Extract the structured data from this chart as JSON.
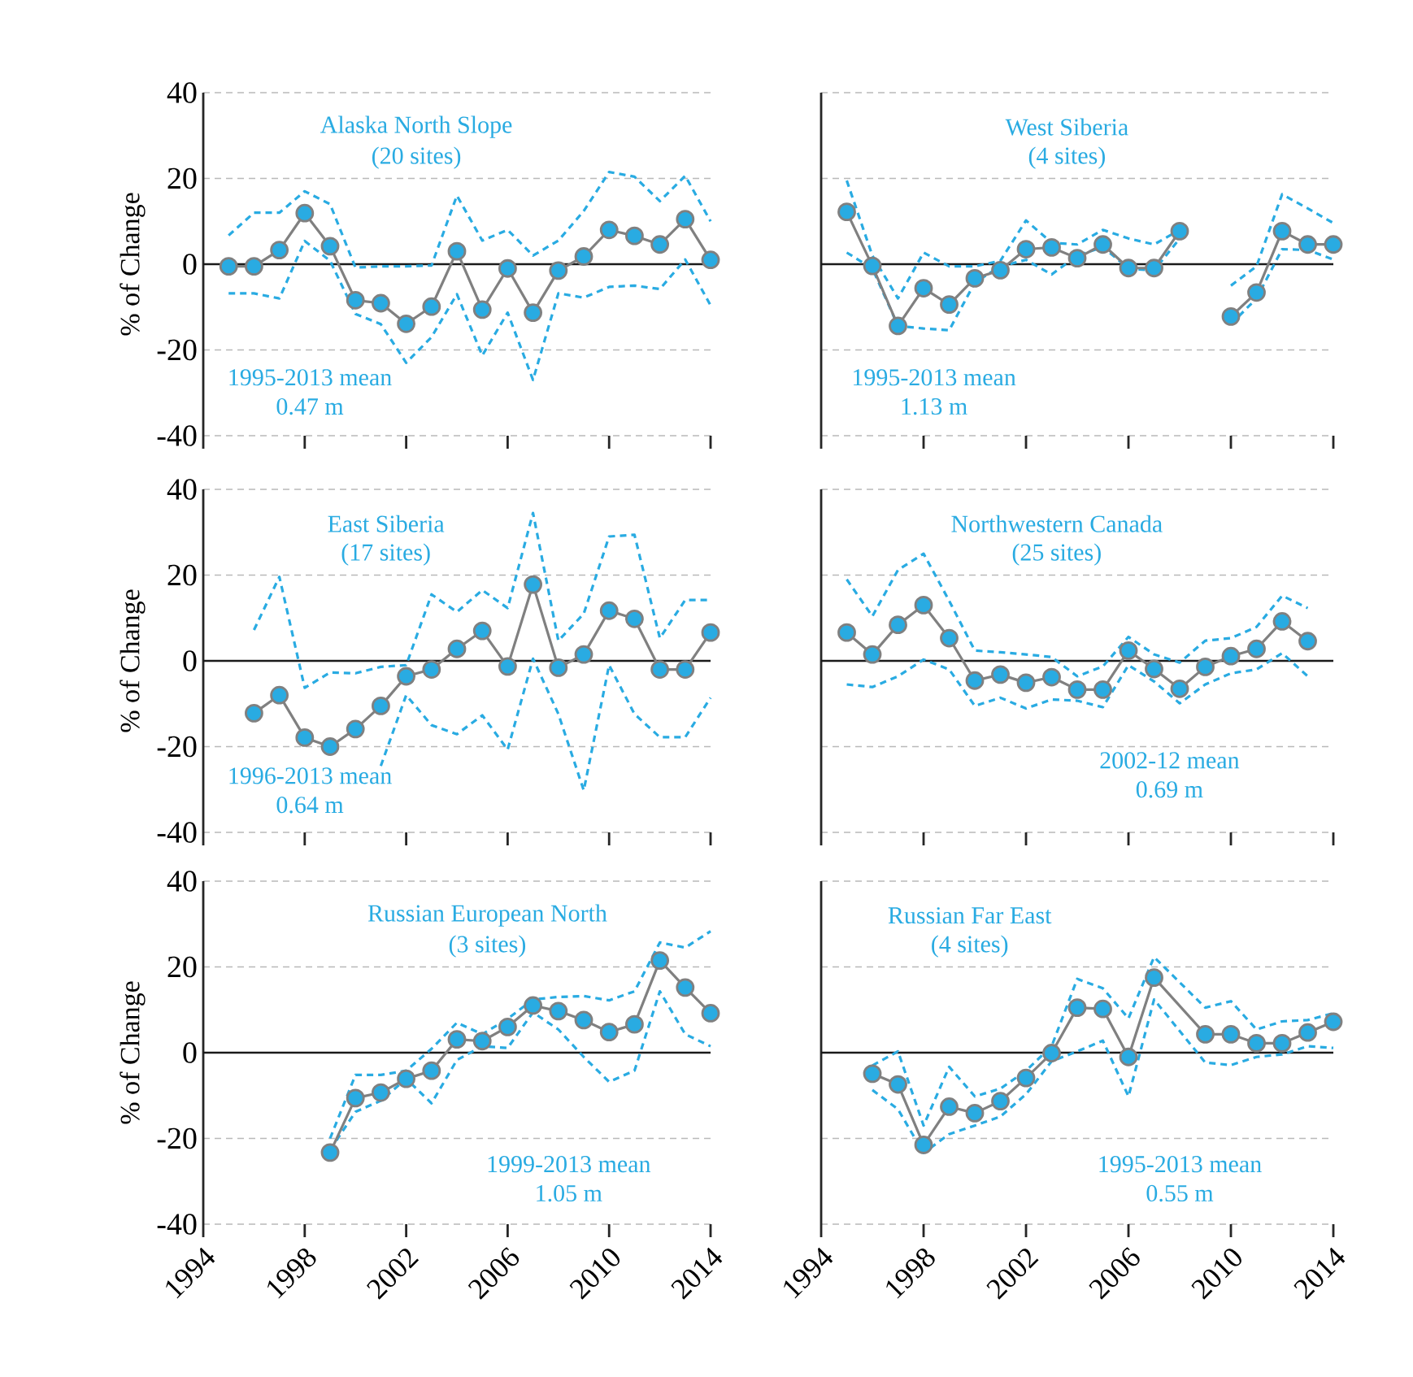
{
  "chart_data": [
    {
      "type": "line",
      "title": "Alaska North Slope",
      "subtitle": "(20 sites)",
      "ylabel": "% of Change",
      "annotations": [
        "1995-2013 mean",
        "0.47 m"
      ],
      "x": [
        1995,
        1996,
        1997,
        1998,
        1999,
        2000,
        2001,
        2002,
        2003,
        2004,
        2005,
        2006,
        2007,
        2008,
        2009,
        2010,
        2011,
        2012,
        2013,
        2014
      ],
      "xlim": [
        1994,
        2014
      ],
      "xticks": [
        1994,
        1998,
        2002,
        2006,
        2010,
        2014
      ],
      "ylim": [
        -40,
        40
      ],
      "yticks": [
        -40,
        -20,
        0,
        20,
        40
      ],
      "grid": "y",
      "marker": "circle",
      "tick_labels": "y",
      "ref_lines": [
        {
          "axis": "y",
          "value": 0,
          "color": "#1a1a1a"
        }
      ],
      "series": [
        {
          "color": "#808080",
          "values": [
            -0.5,
            -0.5,
            3.3,
            11.9,
            4.2,
            -8.4,
            -9.1,
            -13.9,
            -9.9,
            3,
            -10.6,
            -1,
            -11.3,
            -1.5,
            1.8,
            8,
            6.6,
            4.6,
            10.5,
            1
          ]
        },
        {
          "color": "#29abe2",
          "line_style": "dashed",
          "marker": "none",
          "values": [
            6.7,
            12,
            12,
            17,
            14,
            -0.8,
            -0.5,
            -0.5,
            -0.3,
            16,
            5.5,
            8,
            2,
            5.5,
            12.4,
            21.5,
            20.4,
            14.7,
            20.6,
            10
          ]
        },
        {
          "color": "#29abe2",
          "line_style": "dashed",
          "marker": "none",
          "values": [
            -6.8,
            -6.8,
            -8,
            5.4,
            0.8,
            -11.6,
            -14,
            -23,
            -17,
            -7,
            -21.3,
            -11.3,
            -27,
            -6.8,
            -7.8,
            -5.3,
            -5,
            -5.8,
            1.1,
            -9.6
          ]
        }
      ]
    },
    {
      "type": "line",
      "title": "West Siberia",
      "subtitle": "(4 sites)",
      "annotations": [
        "1995-2013 mean",
        "1.13 m"
      ],
      "x": [
        1995,
        1996,
        1997,
        1998,
        1999,
        2000,
        2001,
        2002,
        2003,
        2004,
        2005,
        2006,
        2007,
        2008,
        2009,
        2010,
        2011,
        2012,
        2013,
        2014
      ],
      "xlim": [
        1994,
        2014
      ],
      "xticks": [
        1994,
        1998,
        2002,
        2006,
        2010,
        2014
      ],
      "ylim": [
        -40,
        40
      ],
      "yticks": [
        -40,
        -20,
        0,
        20,
        40
      ],
      "grid": "y",
      "marker": "circle",
      "tick_labels": false,
      "ref_lines": [
        {
          "axis": "y",
          "value": 0,
          "color": "#1a1a1a"
        }
      ],
      "series": [
        {
          "color": "#808080",
          "values": [
            12.2,
            -0.4,
            -14.4,
            -5.6,
            -9.4,
            -3.3,
            -1.4,
            3.5,
            3.9,
            1.4,
            4.6,
            -0.9,
            -0.9,
            7.7,
            null,
            -12.2,
            -6.6,
            7.7,
            4.6,
            4.6
          ]
        },
        {
          "color": "#29abe2",
          "line_style": "dashed",
          "marker": "none",
          "values": [
            19.5,
            2,
            -8,
            2.7,
            -0.5,
            -0.5,
            0.8,
            10.2,
            5,
            4.6,
            8,
            6,
            4.6,
            8,
            null,
            -5,
            -0.5,
            16.3,
            13,
            9.6
          ]
        },
        {
          "color": "#29abe2",
          "line_style": "dashed",
          "marker": "none",
          "values": [
            2.7,
            -1,
            -14.4,
            -15,
            -15.4,
            -4.3,
            -0.5,
            1,
            -2.4,
            2,
            4,
            -1,
            -1.5,
            6,
            null,
            -14,
            -8,
            3.5,
            3.3,
            1.1
          ]
        }
      ]
    },
    {
      "type": "line",
      "title": "East Siberia",
      "subtitle": "(17 sites)",
      "ylabel": "% of Change",
      "annotations": [
        "1996-2013 mean",
        "0.64 m"
      ],
      "x": [
        1996,
        1997,
        1998,
        1999,
        2000,
        2001,
        2002,
        2003,
        2004,
        2005,
        2006,
        2007,
        2008,
        2009,
        2010,
        2011,
        2012,
        2013,
        2014
      ],
      "xlim": [
        1994,
        2014
      ],
      "xticks": [
        1994,
        1998,
        2002,
        2006,
        2010,
        2014
      ],
      "ylim": [
        -40,
        40
      ],
      "yticks": [
        -40,
        -20,
        0,
        20,
        40
      ],
      "grid": "y",
      "marker": "circle",
      "tick_labels": "y",
      "ref_lines": [
        {
          "axis": "y",
          "value": 0,
          "color": "#1a1a1a"
        }
      ],
      "series": [
        {
          "color": "#808080",
          "values": [
            -12.2,
            -8,
            -17.9,
            -20,
            -15.9,
            -10.5,
            -3.6,
            -2,
            2.8,
            7,
            -1.3,
            17.8,
            -1.6,
            1.5,
            11.7,
            9.8,
            -2,
            -2,
            6.6
          ]
        },
        {
          "color": "#29abe2",
          "line_style": "dashed",
          "marker": "none",
          "values": [
            7.2,
            19.6,
            -6.3,
            -2.7,
            -2.9,
            -1.4,
            -1,
            15.5,
            11.4,
            16.5,
            12.3,
            34.5,
            4.7,
            11,
            29,
            29.4,
            5.3,
            14.2,
            14.2
          ]
        },
        {
          "color": "#29abe2",
          "line_style": "dashed",
          "marker": "none",
          "values": [
            null,
            null,
            null,
            null,
            null,
            -24.5,
            -8,
            -15,
            -17.1,
            -12.7,
            -20.7,
            0.5,
            -12.4,
            -30.2,
            -1,
            -12.4,
            -17.8,
            -17.8,
            -8.6
          ]
        }
      ]
    },
    {
      "type": "line",
      "title": "Northwestern Canada",
      "subtitle": "(25 sites)",
      "annotations": [
        "2002-12 mean",
        "0.69 m"
      ],
      "x": [
        1995,
        1996,
        1997,
        1998,
        1999,
        2000,
        2001,
        2002,
        2003,
        2004,
        2005,
        2006,
        2007,
        2008,
        2009,
        2010,
        2011,
        2012,
        2013
      ],
      "xlim": [
        1994,
        2014
      ],
      "xticks": [
        1994,
        1998,
        2002,
        2006,
        2010,
        2014
      ],
      "ylim": [
        -40,
        40
      ],
      "yticks": [
        -40,
        -20,
        0,
        20,
        40
      ],
      "grid": "y",
      "marker": "circle",
      "tick_labels": false,
      "ref_lines": [
        {
          "axis": "y",
          "value": 0,
          "color": "#1a1a1a"
        }
      ],
      "series": [
        {
          "color": "#808080",
          "values": [
            6.6,
            1.5,
            8.4,
            13,
            5.3,
            -4.6,
            -3.2,
            -5.1,
            -3.8,
            -6.7,
            -6.7,
            2.4,
            -1.9,
            -6.5,
            -1.4,
            1.1,
            2.8,
            9.2,
            4.6
          ]
        },
        {
          "color": "#29abe2",
          "line_style": "dashed",
          "marker": "none",
          "values": [
            19,
            10.4,
            21.2,
            25,
            14,
            2.4,
            2,
            1.5,
            0.9,
            -3.6,
            -1.3,
            5.6,
            1.5,
            -0.4,
            4.7,
            5.3,
            7.9,
            15.2,
            12.3
          ]
        },
        {
          "color": "#29abe2",
          "line_style": "dashed",
          "marker": "none",
          "values": [
            -5.5,
            -6.1,
            -3.6,
            0.3,
            -2,
            -10.5,
            -8.6,
            -11.1,
            -9,
            -9.3,
            -10.8,
            -1,
            -4.8,
            -9.9,
            -5.5,
            -2.9,
            -2,
            1.8,
            -3.6
          ]
        }
      ]
    },
    {
      "type": "line",
      "title": "Russian European North",
      "subtitle": "(3 sites)",
      "ylabel": "% of Change",
      "annotations": [
        "1999-2013 mean",
        "1.05 m"
      ],
      "x": [
        1999,
        2000,
        2001,
        2002,
        2003,
        2004,
        2005,
        2006,
        2007,
        2008,
        2009,
        2010,
        2011,
        2012,
        2013,
        2014
      ],
      "xlim": [
        1994,
        2014
      ],
      "xticks": [
        1994,
        1998,
        2002,
        2006,
        2010,
        2014
      ],
      "ylim": [
        -40,
        40
      ],
      "yticks": [
        -40,
        -20,
        0,
        20,
        40
      ],
      "grid": "y",
      "marker": "circle",
      "ref_lines": [
        {
          "axis": "y",
          "value": 0,
          "color": "#1a1a1a"
        }
      ],
      "series": [
        {
          "color": "#808080",
          "values": [
            -23.3,
            -10.6,
            -9.3,
            -6.1,
            -4.2,
            3.1,
            2.7,
            6,
            11,
            9.7,
            7.6,
            4.8,
            6.6,
            21.5,
            15.2,
            9.2
          ]
        },
        {
          "color": "#29abe2",
          "line_style": "dashed",
          "marker": "none",
          "values": [
            -20,
            -5.2,
            -5.2,
            -4.2,
            0.9,
            7,
            4.3,
            7.9,
            12.4,
            13,
            13.2,
            12.2,
            14.3,
            25.7,
            24.5,
            28.3
          ]
        },
        {
          "color": "#29abe2",
          "line_style": "dashed",
          "marker": "none",
          "values": [
            -22.7,
            -13.8,
            -11.2,
            -6.1,
            -11.8,
            -1.7,
            1.5,
            1.1,
            9.4,
            5.4,
            -1,
            -6.8,
            -4.2,
            14.3,
            4.3,
            1.5
          ]
        }
      ]
    },
    {
      "type": "line",
      "title": "Russian Far East",
      "subtitle": "(4 sites)",
      "annotations": [
        "1995-2013 mean",
        "0.55 m"
      ],
      "x": [
        1996,
        1997,
        1998,
        1999,
        2000,
        2001,
        2002,
        2003,
        2004,
        2005,
        2006,
        2007,
        2009,
        2010,
        2011,
        2012,
        2013,
        2014
      ],
      "xlim": [
        1994,
        2014
      ],
      "xticks": [
        1994,
        1998,
        2002,
        2006,
        2010,
        2014
      ],
      "ylim": [
        -40,
        40
      ],
      "yticks": [
        -40,
        -20,
        0,
        20,
        40
      ],
      "grid": "y",
      "marker": "circle",
      "tick_labels": "x",
      "ref_lines": [
        {
          "axis": "y",
          "value": 0,
          "color": "#1a1a1a"
        }
      ],
      "series": [
        {
          "color": "#808080",
          "values": [
            -4.9,
            -7.4,
            -21.5,
            -12.6,
            -14.1,
            -11.3,
            -5.9,
            -0.1,
            10.5,
            10.2,
            -1,
            17.5,
            4.3,
            4.3,
            2.2,
            2.2,
            4.7,
            7.2
          ]
        },
        {
          "color": "#29abe2",
          "line_style": "dashed",
          "marker": "none",
          "values": [
            -3,
            0.3,
            -17,
            -3.3,
            -10.2,
            -8.4,
            -4.2,
            1.5,
            17.2,
            15,
            8,
            22.3,
            10.5,
            12,
            5.4,
            7.3,
            7.6,
            9.2
          ]
        },
        {
          "color": "#29abe2",
          "line_style": "dashed",
          "marker": "none",
          "values": [
            -8.7,
            -13.2,
            -23.4,
            -19,
            -17,
            -14.9,
            -9.7,
            -2,
            0.3,
            2.8,
            -10.2,
            12.4,
            -2.3,
            -2.9,
            -1,
            -0.4,
            1.5,
            1.1
          ]
        }
      ]
    }
  ]
}
